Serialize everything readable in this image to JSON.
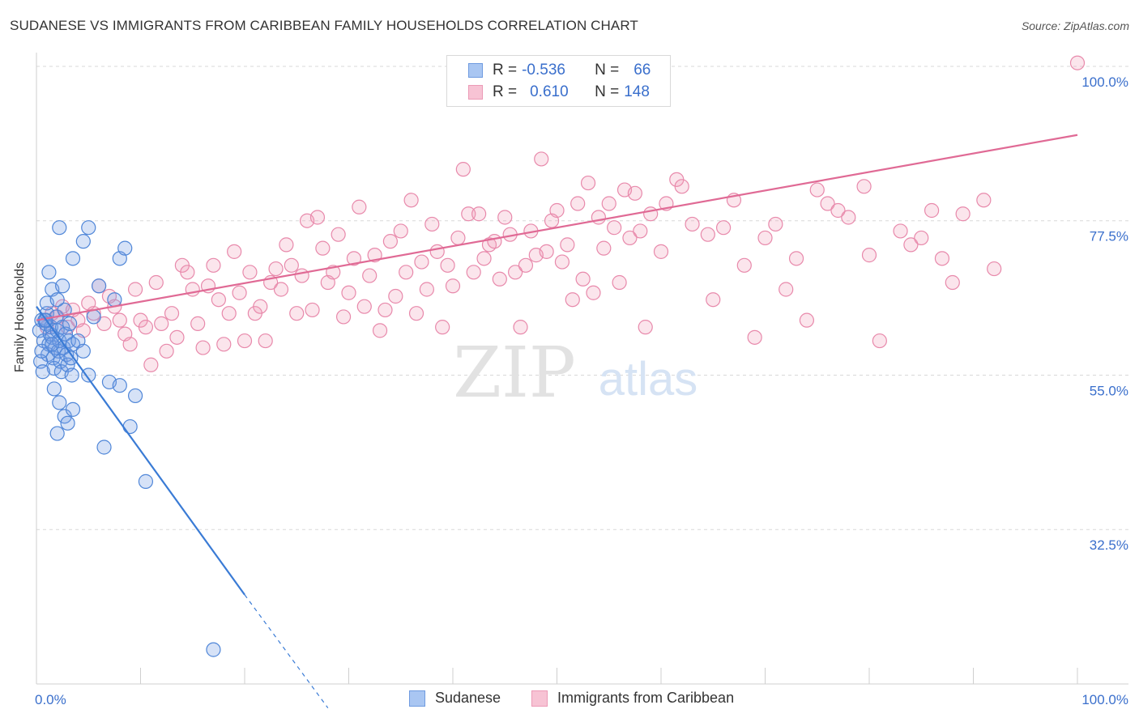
{
  "title": "SUDANESE VS IMMIGRANTS FROM CARIBBEAN FAMILY HOUSEHOLDS CORRELATION CHART",
  "source": "Source: ZipAtlas.com",
  "watermark": {
    "zip": "ZIP",
    "atlas": "atlas"
  },
  "legend": {
    "row1": {
      "r_label": "R =",
      "r_value": "-0.536",
      "n_label": "N =",
      "n_value": "66"
    },
    "row2": {
      "r_label": "R =",
      "r_value": "0.610",
      "n_label": "N =",
      "n_value": "148"
    }
  },
  "bottom_legend": {
    "series1": "Sudanese",
    "series2": "Immigrants from Caribbean"
  },
  "colors": {
    "blue": "#3a7bd5",
    "blue_fill": "rgba(120,160,230,0.30)",
    "pink": "#e06a95",
    "pink_fill": "rgba(240,150,180,0.25)",
    "tick_label": "#3a6fcc",
    "grid": "#d8d8d8"
  },
  "chart_data": {
    "type": "scatter",
    "title": "SUDANESE VS IMMIGRANTS FROM CARIBBEAN FAMILY HOUSEHOLDS CORRELATION CHART",
    "xlabel": "",
    "ylabel": "Family Households",
    "xlim": [
      0,
      100
    ],
    "ylim": [
      10,
      102
    ],
    "x_tick_labels": [
      "0.0%",
      "100.0%"
    ],
    "y_ticks": [
      32.5,
      55.0,
      77.5,
      100.0
    ],
    "y_tick_labels": [
      "32.5%",
      "55.0%",
      "77.5%",
      "100.0%"
    ],
    "series": [
      {
        "name": "Sudanese",
        "color": "#3a7bd5",
        "trend": {
          "x0": 0,
          "y0": 65.0,
          "x1": 20,
          "y1": 23.0,
          "dash_to_x": 28,
          "dash_to_y": 6.5
        },
        "points": [
          [
            0.3,
            61.5
          ],
          [
            0.5,
            63.0
          ],
          [
            0.7,
            60.0
          ],
          [
            0.9,
            62.5
          ],
          [
            1.0,
            64.0
          ],
          [
            1.1,
            58.0
          ],
          [
            1.2,
            59.5
          ],
          [
            1.3,
            61.0
          ],
          [
            1.4,
            62.0
          ],
          [
            1.5,
            60.5
          ],
          [
            1.6,
            57.5
          ],
          [
            1.7,
            56.0
          ],
          [
            1.8,
            59.0
          ],
          [
            1.9,
            63.5
          ],
          [
            2.0,
            61.5
          ],
          [
            2.1,
            58.5
          ],
          [
            2.2,
            60.0
          ],
          [
            2.3,
            57.0
          ],
          [
            2.4,
            55.5
          ],
          [
            2.5,
            62.0
          ],
          [
            2.6,
            59.0
          ],
          [
            2.7,
            64.5
          ],
          [
            2.8,
            61.0
          ],
          [
            2.9,
            58.0
          ],
          [
            3.0,
            56.5
          ],
          [
            3.1,
            60.0
          ],
          [
            3.2,
            62.5
          ],
          [
            3.3,
            57.5
          ],
          [
            3.4,
            55.0
          ],
          [
            3.5,
            59.5
          ],
          [
            0.4,
            57.0
          ],
          [
            0.6,
            55.5
          ],
          [
            0.8,
            63.0
          ],
          [
            1.0,
            65.5
          ],
          [
            1.5,
            67.5
          ],
          [
            2.0,
            66.0
          ],
          [
            2.5,
            68.0
          ],
          [
            1.2,
            70.0
          ],
          [
            1.7,
            53.0
          ],
          [
            2.2,
            51.0
          ],
          [
            2.7,
            49.0
          ],
          [
            3.5,
            50.0
          ],
          [
            4.0,
            60.0
          ],
          [
            4.5,
            58.5
          ],
          [
            5.0,
            55.0
          ],
          [
            5.5,
            63.5
          ],
          [
            6.0,
            68.0
          ],
          [
            7.0,
            54.0
          ],
          [
            8.0,
            53.5
          ],
          [
            7.5,
            66.0
          ],
          [
            9.5,
            52.0
          ],
          [
            2.0,
            46.5
          ],
          [
            3.0,
            48.0
          ],
          [
            4.5,
            74.5
          ],
          [
            5.0,
            76.5
          ],
          [
            6.5,
            44.5
          ],
          [
            9.0,
            47.5
          ],
          [
            10.5,
            39.5
          ],
          [
            2.2,
            76.5
          ],
          [
            3.5,
            72.0
          ],
          [
            8.0,
            72.0
          ],
          [
            0.5,
            58.5
          ],
          [
            1.5,
            59.5
          ],
          [
            0.9,
            63.0
          ],
          [
            17.0,
            15.0
          ],
          [
            8.5,
            73.5
          ]
        ]
      },
      {
        "name": "Immigrants from Caribbean",
        "color": "#e06a95",
        "trend": {
          "x0": 0,
          "y0": 63.0,
          "x1": 100,
          "y1": 90.0
        },
        "points": [
          [
            1.0,
            62.0
          ],
          [
            1.5,
            64.0
          ],
          [
            2.0,
            63.5
          ],
          [
            2.5,
            65.0
          ],
          [
            3.0,
            62.0
          ],
          [
            3.5,
            64.5
          ],
          [
            4.0,
            63.0
          ],
          [
            4.5,
            61.5
          ],
          [
            5.0,
            65.5
          ],
          [
            5.5,
            64.0
          ],
          [
            6.0,
            68.0
          ],
          [
            6.5,
            62.5
          ],
          [
            7.0,
            66.5
          ],
          [
            7.5,
            65.0
          ],
          [
            8.0,
            63.0
          ],
          [
            8.5,
            61.0
          ],
          [
            9.0,
            59.5
          ],
          [
            9.5,
            67.5
          ],
          [
            10.0,
            63.0
          ],
          [
            10.5,
            62.0
          ],
          [
            11.0,
            56.5
          ],
          [
            11.5,
            68.5
          ],
          [
            12.0,
            62.5
          ],
          [
            12.5,
            58.5
          ],
          [
            13.0,
            64.0
          ],
          [
            13.5,
            60.5
          ],
          [
            14.0,
            71.0
          ],
          [
            14.5,
            70.0
          ],
          [
            15.0,
            67.5
          ],
          [
            15.5,
            62.5
          ],
          [
            16.0,
            59.0
          ],
          [
            16.5,
            68.0
          ],
          [
            17.0,
            71.0
          ],
          [
            17.5,
            66.0
          ],
          [
            18.0,
            59.5
          ],
          [
            18.5,
            64.0
          ],
          [
            19.0,
            73.0
          ],
          [
            19.5,
            67.0
          ],
          [
            20.0,
            60.0
          ],
          [
            20.5,
            70.0
          ],
          [
            21.0,
            64.0
          ],
          [
            21.5,
            65.0
          ],
          [
            22.0,
            60.0
          ],
          [
            22.5,
            68.5
          ],
          [
            23.0,
            70.5
          ],
          [
            23.5,
            67.5
          ],
          [
            24.0,
            74.0
          ],
          [
            24.5,
            71.0
          ],
          [
            25.0,
            64.0
          ],
          [
            25.5,
            69.5
          ],
          [
            26.0,
            77.5
          ],
          [
            26.5,
            64.5
          ],
          [
            27.0,
            78.0
          ],
          [
            27.5,
            73.5
          ],
          [
            28.0,
            68.5
          ],
          [
            28.5,
            70.0
          ],
          [
            29.0,
            75.5
          ],
          [
            29.5,
            63.5
          ],
          [
            30.0,
            67.0
          ],
          [
            30.5,
            72.0
          ],
          [
            31.0,
            79.5
          ],
          [
            31.5,
            65.0
          ],
          [
            32.0,
            69.5
          ],
          [
            32.5,
            72.5
          ],
          [
            33.0,
            61.5
          ],
          [
            33.5,
            64.5
          ],
          [
            34.0,
            74.5
          ],
          [
            34.5,
            66.5
          ],
          [
            35.0,
            76.0
          ],
          [
            35.5,
            70.0
          ],
          [
            36.0,
            80.5
          ],
          [
            36.5,
            64.0
          ],
          [
            37.0,
            71.5
          ],
          [
            37.5,
            67.5
          ],
          [
            38.0,
            77.0
          ],
          [
            38.5,
            73.0
          ],
          [
            39.0,
            62.0
          ],
          [
            39.5,
            71.0
          ],
          [
            40.0,
            68.0
          ],
          [
            40.5,
            75.0
          ],
          [
            41.0,
            85.0
          ],
          [
            41.5,
            78.5
          ],
          [
            42.0,
            70.0
          ],
          [
            42.5,
            78.5
          ],
          [
            43.0,
            72.0
          ],
          [
            43.5,
            74.0
          ],
          [
            44.0,
            74.5
          ],
          [
            44.5,
            69.0
          ],
          [
            45.0,
            78.0
          ],
          [
            45.5,
            75.5
          ],
          [
            46.0,
            70.0
          ],
          [
            46.5,
            62.0
          ],
          [
            47.0,
            71.0
          ],
          [
            47.5,
            76.0
          ],
          [
            48.0,
            72.5
          ],
          [
            48.5,
            86.5
          ],
          [
            49.0,
            73.0
          ],
          [
            49.5,
            77.5
          ],
          [
            50.0,
            79.0
          ],
          [
            50.5,
            71.5
          ],
          [
            51.0,
            74.0
          ],
          [
            51.5,
            66.0
          ],
          [
            52.0,
            80.0
          ],
          [
            52.5,
            69.0
          ],
          [
            53.0,
            83.0
          ],
          [
            53.5,
            67.0
          ],
          [
            54.0,
            78.0
          ],
          [
            54.5,
            73.5
          ],
          [
            55.0,
            80.0
          ],
          [
            55.5,
            76.5
          ],
          [
            56.0,
            68.5
          ],
          [
            56.5,
            82.0
          ],
          [
            57.0,
            75.0
          ],
          [
            57.5,
            81.5
          ],
          [
            58.0,
            76.0
          ],
          [
            58.5,
            62.0
          ],
          [
            59.0,
            78.5
          ],
          [
            60.0,
            73.0
          ],
          [
            60.5,
            80.0
          ],
          [
            61.5,
            83.5
          ],
          [
            62.0,
            82.5
          ],
          [
            63.0,
            77.0
          ],
          [
            64.5,
            75.5
          ],
          [
            65.0,
            66.0
          ],
          [
            66.0,
            76.5
          ],
          [
            67.0,
            80.5
          ],
          [
            68.0,
            71.0
          ],
          [
            69.0,
            60.5
          ],
          [
            70.0,
            75.0
          ],
          [
            71.0,
            77.0
          ],
          [
            72.0,
            67.5
          ],
          [
            73.0,
            72.0
          ],
          [
            74.0,
            63.0
          ],
          [
            75.0,
            82.0
          ],
          [
            76.0,
            80.0
          ],
          [
            77.0,
            79.0
          ],
          [
            78.0,
            78.0
          ],
          [
            79.5,
            82.5
          ],
          [
            80.0,
            72.5
          ],
          [
            81.0,
            60.0
          ],
          [
            83.0,
            76.0
          ],
          [
            84.0,
            74.0
          ],
          [
            85.0,
            75.0
          ],
          [
            86.0,
            79.0
          ],
          [
            87.0,
            72.0
          ],
          [
            88.0,
            68.5
          ],
          [
            89.0,
            78.5
          ],
          [
            91.0,
            80.5
          ],
          [
            92.0,
            70.5
          ],
          [
            100.0,
            100.5
          ]
        ]
      }
    ]
  }
}
